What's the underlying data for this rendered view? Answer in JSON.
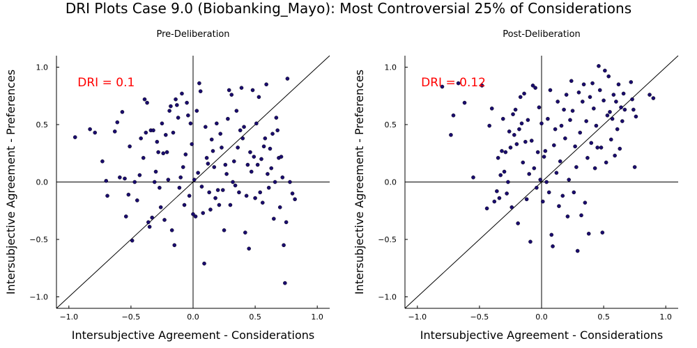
{
  "title": "DRI Plots Case 9.0 (Biobanking_Mayo): Most Controversial 25% of Considerations",
  "chart_data": [
    {
      "type": "scatter",
      "title": "Pre-Deliberation",
      "xlabel": "Intersubjective Agreement - Considerations",
      "ylabel": "Intersubjective Agreement - Preferences",
      "xlim": [
        -1.1,
        1.1
      ],
      "ylim": [
        -1.1,
        1.1
      ],
      "xticks": [
        -1.0,
        -0.5,
        0.0,
        0.5,
        1.0
      ],
      "xtick_labels": [
        "−1.0",
        "−0.5",
        "0.0",
        "0.5",
        "1.0"
      ],
      "yticks": [
        -1.0,
        -0.5,
        0.0,
        0.5,
        1.0
      ],
      "ytick_labels": [
        "−1.0",
        "−0.5",
        "0.0",
        "0.5",
        "1.0"
      ],
      "annotation": "DRI = 0.1",
      "annotation_color": "#ff0000",
      "point_color": "#1a0c6e",
      "grid": false,
      "reference_lines": [
        "y = x",
        "x = 0",
        "y = 0"
      ],
      "points": [
        [
          -0.95,
          0.39
        ],
        [
          -0.83,
          0.46
        ],
        [
          -0.79,
          0.43
        ],
        [
          -0.73,
          0.18
        ],
        [
          -0.7,
          0.01
        ],
        [
          -0.69,
          -0.12
        ],
        [
          -0.63,
          0.44
        ],
        [
          -0.61,
          0.52
        ],
        [
          -0.59,
          0.04
        ],
        [
          -0.57,
          0.61
        ],
        [
          -0.55,
          0.03
        ],
        [
          -0.54,
          -0.3
        ],
        [
          -0.52,
          -0.11
        ],
        [
          -0.51,
          0.31
        ],
        [
          -0.49,
          -0.51
        ],
        [
          -0.47,
          0.0
        ],
        [
          -0.45,
          -0.16
        ],
        [
          -0.43,
          0.06
        ],
        [
          -0.42,
          0.38
        ],
        [
          -0.4,
          0.21
        ],
        [
          -0.39,
          0.72
        ],
        [
          -0.38,
          0.43
        ],
        [
          -0.37,
          0.69
        ],
        [
          -0.36,
          -0.35
        ],
        [
          -0.35,
          -0.39
        ],
        [
          -0.34,
          0.45
        ],
        [
          -0.33,
          -0.31
        ],
        [
          -0.32,
          0.45
        ],
        [
          -0.31,
          0.0
        ],
        [
          -0.3,
          0.09
        ],
        [
          -0.29,
          0.35
        ],
        [
          -0.28,
          0.26
        ],
        [
          -0.27,
          -0.05
        ],
        [
          -0.26,
          -0.22
        ],
        [
          -0.25,
          0.51
        ],
        [
          -0.24,
          0.25
        ],
        [
          -0.23,
          -0.33
        ],
        [
          -0.22,
          0.41
        ],
        [
          -0.21,
          0.26
        ],
        [
          -0.2,
          0.02
        ],
        [
          -0.19,
          0.62
        ],
        [
          -0.18,
          0.66
        ],
        [
          -0.17,
          -0.42
        ],
        [
          -0.16,
          0.43
        ],
        [
          -0.15,
          -0.55
        ],
        [
          -0.14,
          0.72
        ],
        [
          -0.13,
          0.67
        ],
        [
          -0.12,
          0.56
        ],
        [
          -0.11,
          -0.05
        ],
        [
          -0.1,
          0.04
        ],
        [
          -0.09,
          0.77
        ],
        [
          -0.08,
          0.13
        ],
        [
          -0.07,
          -0.2
        ],
        [
          -0.06,
          0.24
        ],
        [
          -0.05,
          0.69
        ],
        [
          -0.04,
          0.58
        ],
        [
          -0.03,
          -0.12
        ],
        [
          -0.02,
          0.51
        ],
        [
          -0.01,
          0.33
        ],
        [
          0.0,
          -0.28
        ],
        [
          0.01,
          0.02
        ],
        [
          0.02,
          -0.3
        ],
        [
          0.03,
          0.62
        ],
        [
          0.04,
          0.08
        ],
        [
          0.05,
          0.86
        ],
        [
          0.06,
          0.79
        ],
        [
          0.07,
          -0.04
        ],
        [
          0.08,
          -0.27
        ],
        [
          0.09,
          -0.71
        ],
        [
          0.1,
          0.48
        ],
        [
          0.11,
          0.21
        ],
        [
          0.12,
          0.16
        ],
        [
          0.13,
          -0.09
        ],
        [
          0.14,
          -0.24
        ],
        [
          0.15,
          0.37
        ],
        [
          0.16,
          0.27
        ],
        [
          0.17,
          0.13
        ],
        [
          0.18,
          -0.14
        ],
        [
          0.19,
          0.51
        ],
        [
          0.2,
          -0.07
        ],
        [
          0.21,
          -0.2
        ],
        [
          0.22,
          0.42
        ],
        [
          0.23,
          0.3
        ],
        [
          0.24,
          -0.07
        ],
        [
          0.25,
          -0.42
        ],
        [
          0.26,
          0.15
        ],
        [
          0.27,
          0.07
        ],
        [
          0.28,
          0.55
        ],
        [
          0.29,
          0.8
        ],
        [
          0.3,
          -0.2
        ],
        [
          0.31,
          0.76
        ],
        [
          0.32,
          0.0
        ],
        [
          0.33,
          0.18
        ],
        [
          0.34,
          -0.03
        ],
        [
          0.35,
          0.62
        ],
        [
          0.36,
          0.3
        ],
        [
          0.37,
          -0.09
        ],
        [
          0.38,
          0.45
        ],
        [
          0.39,
          0.82
        ],
        [
          0.4,
          0.38
        ],
        [
          0.41,
          0.48
        ],
        [
          0.42,
          -0.44
        ],
        [
          0.43,
          -0.12
        ],
        [
          0.44,
          0.15
        ],
        [
          0.45,
          -0.58
        ],
        [
          0.46,
          0.26
        ],
        [
          0.47,
          0.09
        ],
        [
          0.48,
          0.8
        ],
        [
          0.49,
          0.22
        ],
        [
          0.5,
          -0.14
        ],
        [
          0.51,
          0.51
        ],
        [
          0.52,
          0.15
        ],
        [
          0.53,
          0.74
        ],
        [
          0.54,
          -0.09
        ],
        [
          0.55,
          0.2
        ],
        [
          0.56,
          -0.18
        ],
        [
          0.57,
          0.31
        ],
        [
          0.58,
          0.38
        ],
        [
          0.59,
          0.85
        ],
        [
          0.6,
          0.07
        ],
        [
          0.61,
          -0.05
        ],
        [
          0.62,
          0.29
        ],
        [
          0.63,
          0.12
        ],
        [
          0.64,
          0.42
        ],
        [
          0.65,
          -0.32
        ],
        [
          0.66,
          0.0
        ],
        [
          0.67,
          0.56
        ],
        [
          0.68,
          0.45
        ],
        [
          0.69,
          0.21
        ],
        [
          0.7,
          -0.22
        ],
        [
          0.71,
          0.22
        ],
        [
          0.72,
          0.04
        ],
        [
          0.73,
          -0.55
        ],
        [
          0.74,
          -0.88
        ],
        [
          0.75,
          -0.35
        ],
        [
          0.76,
          0.9
        ],
        [
          0.78,
          0.0
        ],
        [
          0.8,
          -0.1
        ],
        [
          0.82,
          -0.15
        ]
      ]
    },
    {
      "type": "scatter",
      "title": "Post-Deliberation",
      "xlabel": "Intersubjective Agreement - Considerations",
      "ylabel": "Intersubjective Agreement - Preferences",
      "xlim": [
        -1.1,
        1.1
      ],
      "ylim": [
        -1.1,
        1.1
      ],
      "xticks": [
        -1.0,
        -0.5,
        0.0,
        0.5,
        1.0
      ],
      "xtick_labels": [
        "−1.0",
        "−0.5",
        "0.0",
        "0.5",
        "1.0"
      ],
      "yticks": [
        -1.0,
        -0.5,
        0.0,
        0.5,
        1.0
      ],
      "ytick_labels": [
        "−1.0",
        "−0.5",
        "0.0",
        "0.5",
        "1.0"
      ],
      "annotation": "DRI = 0.12",
      "annotation_color": "#ff0000",
      "point_color": "#1a0c6e",
      "grid": false,
      "reference_lines": [
        "y = x",
        "x = 0",
        "y = 0"
      ],
      "points": [
        [
          -0.8,
          0.83
        ],
        [
          -0.73,
          0.41
        ],
        [
          -0.71,
          0.58
        ],
        [
          -0.67,
          0.86
        ],
        [
          -0.62,
          0.69
        ],
        [
          -0.55,
          0.04
        ],
        [
          -0.48,
          0.84
        ],
        [
          -0.44,
          -0.23
        ],
        [
          -0.42,
          0.49
        ],
        [
          -0.4,
          0.64
        ],
        [
          -0.38,
          -0.17
        ],
        [
          -0.36,
          -0.08
        ],
        [
          -0.35,
          0.21
        ],
        [
          -0.34,
          -0.14
        ],
        [
          -0.33,
          0.06
        ],
        [
          -0.32,
          0.27
        ],
        [
          -0.31,
          0.55
        ],
        [
          -0.3,
          0.09
        ],
        [
          -0.29,
          0.26
        ],
        [
          -0.28,
          -0.1
        ],
        [
          -0.27,
          0.0
        ],
        [
          -0.26,
          0.44
        ],
        [
          -0.25,
          0.3
        ],
        [
          -0.24,
          -0.22
        ],
        [
          -0.23,
          0.59
        ],
        [
          -0.22,
          0.41
        ],
        [
          -0.21,
          0.63
        ],
        [
          -0.2,
          0.33
        ],
        [
          -0.19,
          -0.36
        ],
        [
          -0.18,
          0.46
        ],
        [
          -0.17,
          0.74
        ],
        [
          -0.16,
          0.51
        ],
        [
          -0.15,
          0.17
        ],
        [
          -0.14,
          0.77
        ],
        [
          -0.13,
          0.35
        ],
        [
          -0.12,
          -0.15
        ],
        [
          -0.11,
          0.54
        ],
        [
          -0.1,
          0.07
        ],
        [
          -0.09,
          -0.52
        ],
        [
          -0.08,
          0.36
        ],
        [
          -0.07,
          0.84
        ],
        [
          -0.06,
          0.12
        ],
        [
          -0.05,
          0.82
        ],
        [
          -0.04,
          -0.05
        ],
        [
          -0.03,
          0.26
        ],
        [
          -0.02,
          0.65
        ],
        [
          -0.01,
          0.02
        ],
        [
          0.0,
          0.51
        ],
        [
          0.01,
          -0.17
        ],
        [
          0.02,
          0.22
        ],
        [
          0.03,
          0.27
        ],
        [
          0.04,
          0.0
        ],
        [
          0.05,
          0.55
        ],
        [
          0.06,
          -0.09
        ],
        [
          0.07,
          0.8
        ],
        [
          0.08,
          -0.46
        ],
        [
          0.09,
          -0.56
        ],
        [
          0.1,
          0.32
        ],
        [
          0.11,
          0.46
        ],
        [
          0.12,
          0.08
        ],
        [
          0.13,
          0.7
        ],
        [
          0.14,
          -0.21
        ],
        [
          0.15,
          0.18
        ],
        [
          0.16,
          0.49
        ],
        [
          0.17,
          -0.12
        ],
        [
          0.18,
          0.63
        ],
        [
          0.19,
          0.38
        ],
        [
          0.2,
          0.76
        ],
        [
          0.21,
          -0.3
        ],
        [
          0.22,
          0.02
        ],
        [
          0.23,
          0.54
        ],
        [
          0.24,
          0.88
        ],
        [
          0.25,
          0.62
        ],
        [
          0.26,
          -0.09
        ],
        [
          0.27,
          0.31
        ],
        [
          0.28,
          0.13
        ],
        [
          0.29,
          -0.6
        ],
        [
          0.3,
          0.78
        ],
        [
          0.31,
          0.43
        ],
        [
          0.32,
          -0.29
        ],
        [
          0.33,
          0.7
        ],
        [
          0.34,
          0.85
        ],
        [
          0.35,
          -0.18
        ],
        [
          0.36,
          0.53
        ],
        [
          0.37,
          0.21
        ],
        [
          0.38,
          -0.45
        ],
        [
          0.39,
          0.74
        ],
        [
          0.4,
          0.34
        ],
        [
          0.41,
          0.86
        ],
        [
          0.42,
          0.64
        ],
        [
          0.43,
          0.12
        ],
        [
          0.44,
          0.49
        ],
        [
          0.45,
          0.3
        ],
        [
          0.46,
          1.01
        ],
        [
          0.47,
          0.8
        ],
        [
          0.48,
          0.3
        ],
        [
          0.49,
          -0.44
        ],
        [
          0.5,
          0.71
        ],
        [
          0.51,
          0.97
        ],
        [
          0.52,
          0.17
        ],
        [
          0.53,
          0.58
        ],
        [
          0.54,
          0.92
        ],
        [
          0.55,
          0.61
        ],
        [
          0.56,
          0.37
        ],
        [
          0.57,
          0.55
        ],
        [
          0.58,
          0.76
        ],
        [
          0.59,
          0.23
        ],
        [
          0.6,
          0.7
        ],
        [
          0.61,
          0.46
        ],
        [
          0.62,
          0.85
        ],
        [
          0.63,
          0.29
        ],
        [
          0.64,
          0.65
        ],
        [
          0.65,
          0.53
        ],
        [
          0.66,
          0.77
        ],
        [
          0.67,
          0.63
        ],
        [
          0.72,
          0.87
        ],
        [
          0.73,
          0.72
        ],
        [
          0.74,
          0.63
        ],
        [
          0.75,
          0.13
        ],
        [
          0.76,
          0.57
        ],
        [
          0.87,
          0.76
        ],
        [
          0.9,
          0.73
        ]
      ]
    }
  ]
}
